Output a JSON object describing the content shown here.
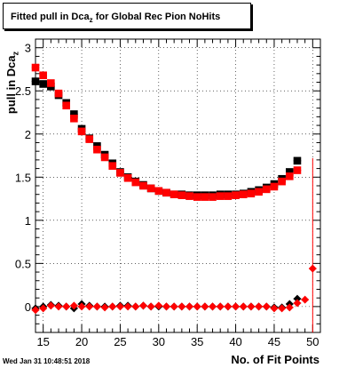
{
  "chart_data": {
    "type": "scatter",
    "title": "Fitted pull in Dca",
    "title_sub": "z",
    "title_rest": "for Global Rec Pion NoHits",
    "xlabel": "No. of Fit Points",
    "ylabel": "pull in Dca",
    "ylabel_sub": "z",
    "xlim": [
      14,
      51
    ],
    "ylim": [
      -0.3,
      3.1
    ],
    "xticks": [
      15,
      20,
      25,
      30,
      35,
      40,
      45,
      50
    ],
    "yticks": [
      0,
      0.5,
      1,
      1.5,
      2,
      2.5,
      3
    ],
    "ytick_labels": [
      "0",
      "0.5",
      "1",
      "1.5",
      "2",
      "2.5",
      "3"
    ],
    "grid": true,
    "series": [
      {
        "marker": "square",
        "color": "#000000",
        "x": [
          14,
          15,
          16,
          17,
          18,
          19,
          20,
          21,
          22,
          23,
          24,
          25,
          26,
          27,
          28,
          29,
          30,
          31,
          32,
          33,
          34,
          35,
          36,
          37,
          38,
          39,
          40,
          41,
          42,
          43,
          44,
          45,
          46,
          47,
          48
        ],
        "y": [
          2.61,
          2.58,
          2.55,
          2.45,
          2.36,
          2.23,
          2.06,
          1.95,
          1.86,
          1.76,
          1.66,
          1.56,
          1.5,
          1.45,
          1.41,
          1.37,
          1.34,
          1.32,
          1.3,
          1.3,
          1.29,
          1.29,
          1.29,
          1.29,
          1.3,
          1.3,
          1.3,
          1.31,
          1.33,
          1.35,
          1.38,
          1.42,
          1.48,
          1.56,
          1.69
        ]
      },
      {
        "marker": "square",
        "color": "#ff0000",
        "x": [
          14,
          15,
          16,
          17,
          18,
          19,
          20,
          21,
          22,
          23,
          24,
          25,
          26,
          27,
          28,
          29,
          30,
          31,
          32,
          33,
          34,
          35,
          36,
          37,
          38,
          39,
          40,
          41,
          42,
          43,
          44,
          45,
          46,
          47,
          48
        ],
        "y": [
          2.77,
          2.68,
          2.59,
          2.47,
          2.33,
          2.18,
          2.03,
          1.94,
          1.82,
          1.73,
          1.63,
          1.55,
          1.49,
          1.44,
          1.4,
          1.37,
          1.34,
          1.32,
          1.3,
          1.29,
          1.28,
          1.27,
          1.27,
          1.27,
          1.28,
          1.28,
          1.29,
          1.3,
          1.31,
          1.33,
          1.36,
          1.39,
          1.45,
          1.51,
          1.58
        ]
      },
      {
        "marker": "diamond",
        "color": "#000000",
        "x": [
          14,
          15,
          16,
          17,
          18,
          19,
          20,
          21,
          22,
          23,
          24,
          25,
          26,
          27,
          28,
          29,
          30,
          31,
          32,
          33,
          34,
          35,
          36,
          37,
          38,
          39,
          40,
          41,
          42,
          43,
          44,
          45,
          46,
          47,
          48
        ],
        "y": [
          -0.02,
          0.0,
          0.02,
          0.01,
          0.0,
          -0.02,
          0.03,
          0.01,
          0.0,
          0.0,
          0.0,
          0.01,
          0.01,
          0.0,
          0.01,
          0.0,
          0.0,
          0.0,
          0.0,
          0.0,
          0.0,
          0.0,
          0.0,
          0.0,
          0.0,
          0.0,
          0.0,
          0.0,
          0.0,
          0.0,
          0.0,
          -0.01,
          -0.01,
          0.03,
          0.09
        ]
      },
      {
        "marker": "diamond",
        "color": "#ff0000",
        "x": [
          14,
          15,
          16,
          17,
          18,
          19,
          20,
          21,
          22,
          23,
          24,
          25,
          26,
          27,
          28,
          29,
          30,
          31,
          32,
          33,
          34,
          35,
          36,
          37,
          38,
          39,
          40,
          41,
          42,
          43,
          44,
          45,
          46,
          47,
          48,
          49,
          50
        ],
        "y": [
          -0.04,
          -0.02,
          0.01,
          0.0,
          0.0,
          0.01,
          0.0,
          0.0,
          0.0,
          -0.01,
          0.0,
          0.0,
          0.0,
          0.0,
          0.01,
          0.0,
          0.01,
          0.0,
          0.0,
          0.0,
          0.0,
          0.0,
          0.0,
          0.0,
          0.0,
          0.0,
          0.0,
          0.0,
          0.0,
          0.0,
          0.0,
          -0.02,
          -0.02,
          -0.01,
          0.04,
          0.08,
          0.44
        ],
        "error_bars": [
          {
            "x": 50,
            "low": -0.3,
            "high": 1.72
          }
        ]
      }
    ]
  },
  "footer": {
    "timestamp": "Wed Jan 31 10:48:51 2018"
  }
}
